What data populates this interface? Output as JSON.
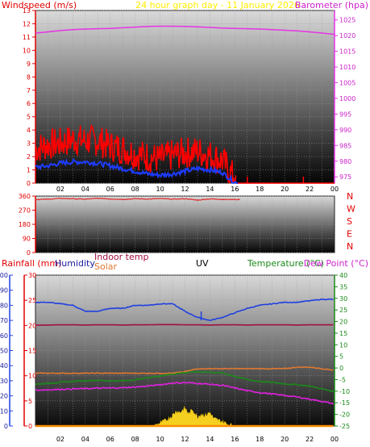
{
  "header": {
    "left_title": "Windspeed (m/s)",
    "center_title": "24 hour graph day - 11 January 2026",
    "right_title": "Barometer (hpa)"
  },
  "colors": {
    "wind": "#ff0000",
    "avg_wind": "#1e3cff",
    "barometer": "#e633e6",
    "direction": "#e03030",
    "humidity": "#2040e0",
    "indoor_temp": "#a01040",
    "solar": "#e07830",
    "solar_fill": "#f5d020",
    "temperature": "#1a8a1a",
    "dew_point": "#e020e0",
    "rain": "#ff8c00",
    "title_yellow": "#ffee00"
  },
  "panel3_header": {
    "rainfall": "Rainfall (mm)",
    "humidity": "Humidity",
    "indoor_temp": "Indoor temp",
    "solar": "Solar",
    "uv": "UV",
    "temperature": "Temperature (°C)",
    "dew_point": "Dew Point (°C)"
  },
  "x_tick_labels": [
    "02",
    "04",
    "06",
    "08",
    "10",
    "12",
    "14",
    "16",
    "18",
    "20",
    "22",
    "00"
  ],
  "chart_data": [
    {
      "type": "line",
      "title": "24 hour graph day - 11 January 2026",
      "ylabel": "Windspeed (m/s)",
      "y2label": "Barometer (hpa)",
      "ylim": [
        0,
        13
      ],
      "y2lim": [
        973,
        1028
      ],
      "y_ticks": [
        0,
        1,
        2,
        3,
        4,
        5,
        6,
        7,
        8,
        9,
        10,
        11,
        12,
        13
      ],
      "y2_ticks": [
        975,
        980,
        985,
        990,
        995,
        1000,
        1005,
        1010,
        1015,
        1020,
        1025
      ],
      "x_hours": [
        0,
        1,
        2,
        3,
        4,
        5,
        6,
        7,
        8,
        9,
        10,
        11,
        12,
        13,
        14,
        15,
        16,
        17,
        18,
        19,
        20,
        21,
        22,
        23,
        24
      ],
      "series": [
        {
          "name": "Windspeed",
          "axis": "left",
          "style": "noisy",
          "values": [
            2.6,
            2.9,
            3.0,
            3.3,
            3.2,
            3.2,
            2.8,
            2.6,
            2.2,
            2.0,
            1.8,
            2.1,
            2.3,
            2.4,
            2.1,
            1.7,
            0.3,
            0,
            0,
            0,
            0,
            0,
            0,
            0,
            0
          ]
        },
        {
          "name": "Average wind",
          "axis": "left",
          "values": [
            1.2,
            1.3,
            1.5,
            1.6,
            1.6,
            1.5,
            1.3,
            1.1,
            0.9,
            0.7,
            0.6,
            0.7,
            0.9,
            1.1,
            1.0,
            0.8,
            0.05,
            0,
            0,
            0,
            0,
            0,
            0,
            0,
            0
          ]
        },
        {
          "name": "Barometer",
          "axis": "right",
          "values": [
            1020.8,
            1021.2,
            1021.6,
            1021.9,
            1022.1,
            1022.2,
            1022.3,
            1022.5,
            1022.7,
            1022.9,
            1023.0,
            1023.0,
            1022.9,
            1022.8,
            1022.6,
            1022.4,
            1022.3,
            1022.2,
            1022.1,
            1021.9,
            1021.7,
            1021.5,
            1021.2,
            1020.8,
            1020.4
          ]
        }
      ]
    },
    {
      "type": "scatter",
      "ylabel": "",
      "ylim": [
        0,
        360
      ],
      "y_ticks": [
        0,
        90,
        180,
        270,
        360
      ],
      "compass_labels": [
        "N",
        "W",
        "S",
        "E",
        "N"
      ],
      "series": [
        {
          "name": "Wind direction",
          "x": [
            0,
            1,
            2,
            3,
            4,
            5,
            6,
            7,
            8,
            9,
            10,
            11,
            12,
            13,
            14,
            15,
            16
          ],
          "values": [
            338,
            340,
            345,
            343,
            340,
            346,
            342,
            339,
            343,
            341,
            344,
            340,
            343,
            334,
            342,
            339,
            338
          ]
        }
      ]
    },
    {
      "type": "line",
      "ylim_rain": [
        0,
        30
      ],
      "ylim_humidity": [
        0,
        100
      ],
      "ylim_temp": [
        -25,
        40
      ],
      "rain_ticks": [
        0,
        5,
        10,
        15,
        20,
        25,
        30
      ],
      "humidity_ticks": [
        0,
        10,
        20,
        30,
        40,
        50,
        60,
        70,
        80,
        90,
        100
      ],
      "temp_ticks": [
        -25,
        -20,
        -15,
        -10,
        -5,
        0,
        5,
        10,
        15,
        20,
        25,
        30,
        35,
        40
      ],
      "x_hours": [
        0,
        1,
        2,
        3,
        4,
        5,
        6,
        7,
        8,
        9,
        10,
        11,
        12,
        13,
        14,
        15,
        16,
        17,
        18,
        19,
        20,
        21,
        22,
        23,
        24
      ],
      "series": [
        {
          "name": "Humidity",
          "axis": "humidity",
          "values": [
            82,
            82,
            81,
            80,
            76,
            76,
            78,
            78,
            80,
            80,
            81,
            81,
            76,
            72,
            70,
            72,
            75,
            78,
            80,
            81,
            82,
            82,
            83,
            84,
            84
          ]
        },
        {
          "name": "Indoor temp",
          "axis": "temp",
          "values": [
            18.5,
            18.5,
            18.6,
            18.6,
            18.5,
            18.6,
            18.6,
            18.5,
            18.6,
            18.6,
            18.7,
            18.7,
            18.6,
            18.6,
            18.5,
            18.6,
            18.6,
            18.5,
            18.6,
            18.6,
            18.6,
            18.5,
            18.6,
            18.6,
            18.6
          ]
        },
        {
          "name": "Solar",
          "axis": "humidity",
          "values": [
            35,
            35,
            35,
            35,
            35,
            35,
            35,
            35,
            35,
            35,
            35,
            35,
            36,
            38,
            38,
            38,
            38,
            38,
            38,
            38,
            38,
            39,
            39,
            38,
            37
          ]
        },
        {
          "name": "Temperature",
          "axis": "temp",
          "values": [
            -7,
            -6.6,
            -6.2,
            -5.8,
            -5.4,
            -5.3,
            -5.5,
            -5.5,
            -5,
            -4.2,
            -3.4,
            -2.6,
            -2.0,
            -1.6,
            -1.8,
            -2.2,
            -3.6,
            -5.0,
            -5.8,
            -6.2,
            -6.8,
            -7.2,
            -7.8,
            -9.0,
            -10.2
          ]
        },
        {
          "name": "Dew Point",
          "axis": "temp",
          "values": [
            -9.5,
            -9.4,
            -9.2,
            -9.0,
            -8.9,
            -8.7,
            -8.6,
            -8.5,
            -8.2,
            -7.8,
            -7.2,
            -6.5,
            -6.3,
            -6.6,
            -7.0,
            -7.5,
            -8.6,
            -9.8,
            -10.6,
            -11.2,
            -11.8,
            -12.5,
            -13.4,
            -14.4,
            -15.5
          ]
        },
        {
          "name": "Solar radiation",
          "axis": "humidity",
          "style": "filled",
          "x": [
            9.5,
            10,
            10.5,
            11,
            11.3,
            11.6,
            12,
            12.3,
            12.6,
            13,
            13.3,
            13.6,
            14,
            14.3,
            14.6,
            15,
            15.5,
            16
          ],
          "values": [
            0,
            2,
            4,
            7,
            10,
            9,
            12,
            8,
            11,
            6,
            8,
            7,
            9,
            5,
            4,
            3,
            1,
            0
          ]
        },
        {
          "name": "Rainfall",
          "axis": "rain",
          "values": [
            0,
            0,
            0,
            0,
            0,
            0,
            0,
            0,
            0,
            0,
            0,
            0,
            0,
            0,
            0,
            0,
            0,
            0,
            0,
            0,
            0,
            0,
            0,
            0,
            0
          ]
        }
      ]
    }
  ]
}
